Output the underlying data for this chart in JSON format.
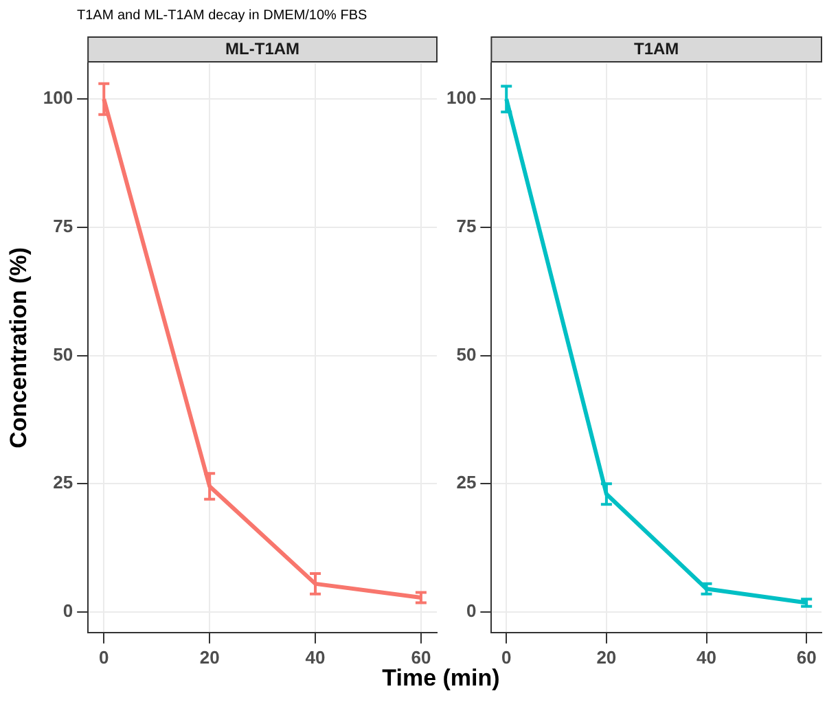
{
  "chart_data": [
    {
      "type": "line",
      "title": "T1AM and ML-T1AM decay in DMEM/10% FBS",
      "subtitle": "ML-T1AM",
      "ylabel": "Concentration (%)",
      "x": [
        0,
        20,
        40,
        60
      ],
      "series": [
        {
          "color": "#f8766d",
          "values": [
            100,
            24.5,
            5.5,
            2.8
          ],
          "errors": [
            3,
            2.5,
            2,
            1
          ]
        }
      ],
      "xlim": [
        -3,
        63
      ],
      "xticks": [
        0,
        20,
        40,
        60
      ],
      "ylim": [
        -4,
        107
      ],
      "yticks": [
        0,
        25,
        50,
        75,
        100
      ],
      "grid": true,
      "legend": false,
      "line_style": "solid"
    },
    {
      "type": "line",
      "subtitle": "T1AM",
      "xlabel": "Time (min)",
      "x": [
        0,
        20,
        40,
        60
      ],
      "series": [
        {
          "color": "#00bfc4",
          "values": [
            100,
            23,
            4.5,
            1.8
          ],
          "errors": [
            2.5,
            2,
            1,
            0.7
          ]
        }
      ],
      "xlim": [
        -3,
        63
      ],
      "xticks": [
        0,
        20,
        40,
        60
      ],
      "ylim": [
        -4,
        107
      ],
      "yticks": [
        0,
        25,
        50,
        75,
        100
      ],
      "grid": true,
      "legend": false,
      "line_style": "solid"
    }
  ]
}
